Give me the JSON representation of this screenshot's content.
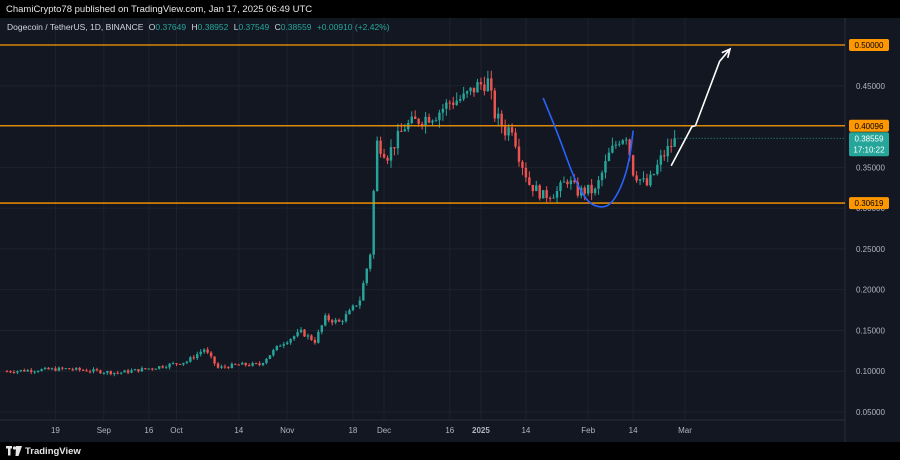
{
  "header": {
    "published_line": "ChamiCrypto78 published on TradingView.com, Jan 17, 2025 06:49 UTC"
  },
  "symbol": {
    "name": "Dogecoin / TetherUS, 1D, BINANCE",
    "o_label": "O",
    "o_value": "0.37649",
    "h_label": "H",
    "h_value": "0.38952",
    "l_label": "L",
    "l_value": "0.37549",
    "c_label": "C",
    "c_value": "0.38559",
    "change": "+0.00910 (+2.42%)"
  },
  "footer": {
    "logo_text": "TradingView"
  },
  "chart_data": {
    "type": "candlestick",
    "y_range": [
      0.045,
      0.52
    ],
    "y_ticks": [
      "0.45000",
      "0.35000",
      "0.30000",
      "0.25000",
      "0.20000",
      "0.15000",
      "0.10000",
      "0.05000"
    ],
    "y_tick_values": [
      0.45,
      0.35,
      0.3,
      0.25,
      0.2,
      0.15,
      0.1,
      0.05
    ],
    "x_ticks": [
      "19",
      "Sep",
      "16",
      "Oct",
      "14",
      "Nov",
      "18",
      "Dec",
      "16",
      "2025",
      "14",
      "Feb",
      "14",
      "Mar"
    ],
    "x_tick_days": [
      -123,
      -109,
      -96,
      -88,
      -70,
      -56,
      -37,
      -28,
      -9,
      0,
      13,
      31,
      44,
      59
    ],
    "x_tick_bold": [
      false,
      false,
      false,
      false,
      false,
      false,
      false,
      false,
      false,
      true,
      false,
      false,
      false,
      false
    ],
    "x_range_days": [
      -137,
      72
    ],
    "levels": [
      {
        "label": "0.50000",
        "value": 0.5,
        "color": "#ff9800"
      },
      {
        "label": "0.40096",
        "value": 0.40096,
        "color": "#ff9800"
      },
      {
        "label": "0.30619",
        "value": 0.30619,
        "color": "#ff9800"
      }
    ],
    "last_price": {
      "label": "0.38559",
      "countdown": "17:10:22",
      "value": 0.38559,
      "color": "#26a69a"
    },
    "candle_anchors": [
      [
        -137,
        0.1
      ],
      [
        -120,
        0.103
      ],
      [
        -105,
        0.098
      ],
      [
        -95,
        0.104
      ],
      [
        -85,
        0.112
      ],
      [
        -80,
        0.127
      ],
      [
        -76,
        0.104
      ],
      [
        -70,
        0.108
      ],
      [
        -64,
        0.108
      ],
      [
        -58,
        0.133
      ],
      [
        -52,
        0.148
      ],
      [
        -48,
        0.137
      ],
      [
        -45,
        0.165
      ],
      [
        -41,
        0.16
      ],
      [
        -38,
        0.172
      ],
      [
        -35,
        0.188
      ],
      [
        -32,
        0.245
      ],
      [
        -31,
        0.32
      ],
      [
        -30,
        0.38
      ],
      [
        -27,
        0.365
      ],
      [
        -22,
        0.4
      ],
      [
        -17,
        0.41
      ],
      [
        -13,
        0.415
      ],
      [
        -9,
        0.43
      ],
      [
        -5,
        0.435
      ],
      [
        -1,
        0.45
      ],
      [
        2,
        0.455
      ],
      [
        4,
        0.415
      ],
      [
        7,
        0.395
      ],
      [
        9,
        0.4
      ],
      [
        11,
        0.365
      ],
      [
        14,
        0.33
      ],
      [
        18,
        0.315
      ],
      [
        22,
        0.32
      ],
      [
        25,
        0.335
      ],
      [
        28,
        0.32
      ],
      [
        31,
        0.322
      ],
      [
        33,
        0.32
      ],
      [
        37,
        0.365
      ],
      [
        40,
        0.385
      ],
      [
        42,
        0.39
      ],
      [
        44,
        0.345
      ],
      [
        46,
        0.335
      ],
      [
        48,
        0.328
      ],
      [
        50,
        0.342
      ],
      [
        52,
        0.36
      ],
      [
        54,
        0.372
      ],
      [
        56,
        0.382
      ]
    ],
    "cup_curve": [
      [
        18,
        0.435
      ],
      [
        23,
        0.383
      ],
      [
        27,
        0.335
      ],
      [
        31,
        0.306
      ],
      [
        35,
        0.3
      ],
      [
        38,
        0.306
      ],
      [
        41,
        0.33
      ],
      [
        43,
        0.36
      ],
      [
        44,
        0.395
      ]
    ],
    "projection_path": [
      [
        55,
        0.352
      ],
      [
        61,
        0.4
      ],
      [
        62,
        0.401
      ],
      [
        69,
        0.48
      ],
      [
        72,
        0.495
      ]
    ],
    "colors": {
      "up": "#26a69a",
      "down": "#ef5350",
      "background": "#131722",
      "grid": "#1e222d",
      "cup": "#2962ff",
      "projection": "#ffffff"
    }
  }
}
